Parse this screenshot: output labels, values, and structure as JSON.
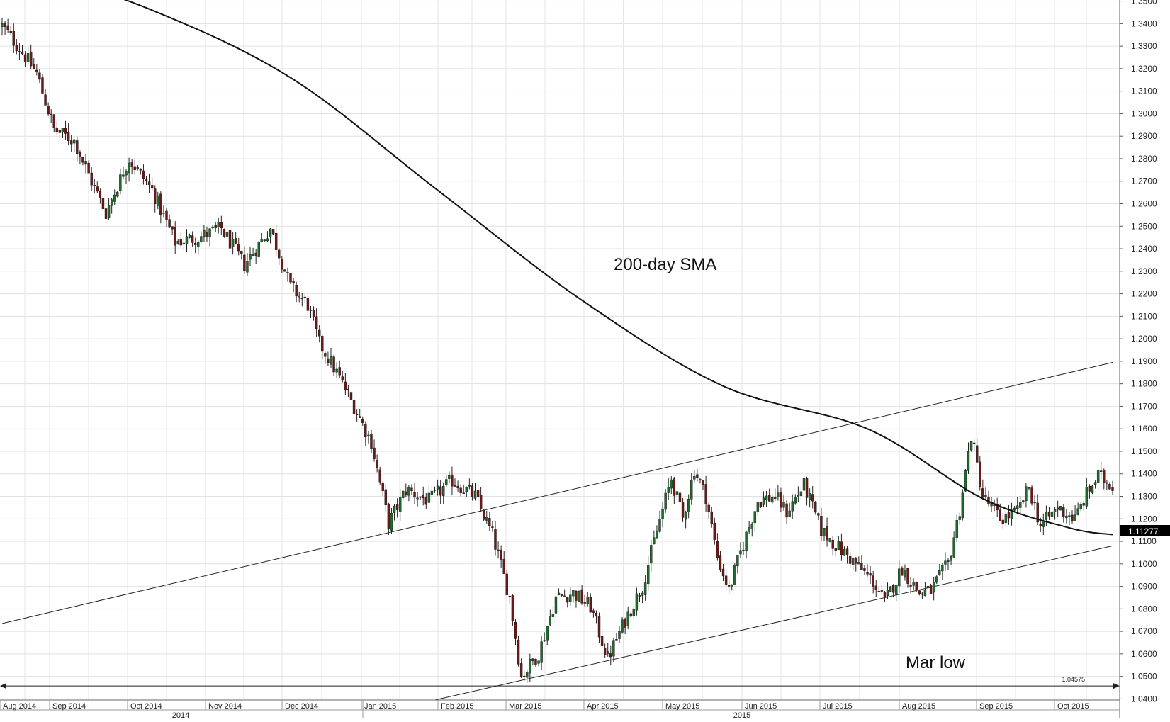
{
  "chart_data": {
    "type": "candlestick",
    "title": "",
    "xlabel": "",
    "ylabel": "",
    "ylim": [
      1.0395,
      1.3505
    ],
    "y_ticks": [
      "1.3500",
      "1.3400",
      "1.3300",
      "1.3200",
      "1.3100",
      "1.3000",
      "1.2900",
      "1.2800",
      "1.2700",
      "1.2600",
      "1.2500",
      "1.2400",
      "1.2300",
      "1.2200",
      "1.2100",
      "1.2000",
      "1.1900",
      "1.1800",
      "1.1700",
      "1.1600",
      "1.1500",
      "1.1400",
      "1.1300",
      "1.1200",
      "1.1100",
      "1.1000",
      "1.0900",
      "1.0800",
      "1.0700",
      "1.0600",
      "1.0500",
      "1.0400"
    ],
    "x_months": [
      "Aug 2014",
      "Sep 2014",
      "Oct 2014",
      "Nov 2014",
      "Dec 2014",
      "Jan 2015",
      "Feb 2015",
      "Mar 2015",
      "Apr 2015",
      "May 2015",
      "Jun 2015",
      "Jul 2015",
      "Aug 2015",
      "Sep 2015",
      "Oct 2015"
    ],
    "x_years": [
      "2014",
      "2015"
    ],
    "price_anchors": [
      [
        0,
        1.339
      ],
      [
        6,
        1.329
      ],
      [
        12,
        1.318
      ],
      [
        18,
        1.293
      ],
      [
        25,
        1.288
      ],
      [
        32,
        1.267
      ],
      [
        36,
        1.256
      ],
      [
        44,
        1.28
      ],
      [
        52,
        1.266
      ],
      [
        60,
        1.243
      ],
      [
        68,
        1.245
      ],
      [
        76,
        1.249
      ],
      [
        84,
        1.233
      ],
      [
        93,
        1.249
      ],
      [
        100,
        1.223
      ],
      [
        106,
        1.215
      ],
      [
        110,
        1.198
      ],
      [
        116,
        1.185
      ],
      [
        122,
        1.17
      ],
      [
        128,
        1.154
      ],
      [
        134,
        1.118
      ],
      [
        140,
        1.133
      ],
      [
        148,
        1.128
      ],
      [
        156,
        1.137
      ],
      [
        164,
        1.13
      ],
      [
        170,
        1.113
      ],
      [
        176,
        1.085
      ],
      [
        180,
        1.05
      ],
      [
        186,
        1.06
      ],
      [
        192,
        1.085
      ],
      [
        198,
        1.087
      ],
      [
        204,
        1.081
      ],
      [
        210,
        1.058
      ],
      [
        216,
        1.075
      ],
      [
        222,
        1.09
      ],
      [
        226,
        1.11
      ],
      [
        232,
        1.138
      ],
      [
        236,
        1.12
      ],
      [
        240,
        1.142
      ],
      [
        244,
        1.13
      ],
      [
        248,
        1.103
      ],
      [
        252,
        1.088
      ],
      [
        256,
        1.105
      ],
      [
        262,
        1.128
      ],
      [
        268,
        1.13
      ],
      [
        272,
        1.123
      ],
      [
        278,
        1.135
      ],
      [
        284,
        1.115
      ],
      [
        290,
        1.107
      ],
      [
        296,
        1.1
      ],
      [
        302,
        1.092
      ],
      [
        306,
        1.083
      ],
      [
        312,
        1.098
      ],
      [
        318,
        1.087
      ],
      [
        322,
        1.088
      ],
      [
        328,
        1.1
      ],
      [
        332,
        1.124
      ],
      [
        336,
        1.157
      ],
      [
        340,
        1.13
      ],
      [
        346,
        1.12
      ],
      [
        352,
        1.123
      ],
      [
        356,
        1.134
      ],
      [
        360,
        1.117
      ],
      [
        366,
        1.125
      ],
      [
        372,
        1.12
      ],
      [
        376,
        1.131
      ],
      [
        380,
        1.139
      ],
      [
        385,
        1.135
      ]
    ],
    "series": [
      {
        "type": "line",
        "values": [
          [
            0,
            1.368
          ],
          [
            50,
            1.347
          ],
          [
            100,
            1.316
          ],
          [
            150,
            1.267
          ],
          [
            200,
            1.218
          ],
          [
            250,
            1.179
          ],
          [
            300,
            1.16
          ],
          [
            340,
            1.129
          ],
          [
            370,
            1.116
          ],
          [
            385,
            1.113
          ]
        ]
      },
      {
        "type": "line",
        "values": [
          [
            0,
            1.0735
          ],
          [
            385,
            1.1895
          ]
        ]
      },
      {
        "type": "line",
        "values": [
          [
            150,
            1.0395
          ],
          [
            385,
            1.108
          ]
        ]
      },
      {
        "type": "line",
        "values": [
          [
            0,
            1.04575
          ],
          [
            385,
            1.04575
          ]
        ]
      }
    ],
    "last_price": "1.11277",
    "level_label": "1.04575",
    "annotations": [
      "200-day SMA",
      "Mar low"
    ],
    "grid": true
  }
}
